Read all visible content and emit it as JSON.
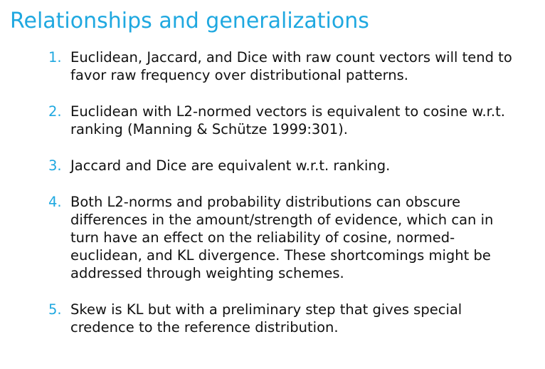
{
  "slide": {
    "title": "Relationships and generalizations",
    "points": [
      {
        "number": "1.",
        "text": "Euclidean, Jaccard, and Dice with raw count vectors will tend to favor raw frequency over distributional patterns."
      },
      {
        "number": "2.",
        "text": "Euclidean with L2-normed vectors is equivalent to cosine w.r.t. ranking (Manning & Schütze 1999:301)."
      },
      {
        "number": "3.",
        "text": "Jaccard and Dice are equivalent w.r.t. ranking."
      },
      {
        "number": "4.",
        "text": "Both L2-norms and probability distributions can obscure differences in the amount/strength of evidence, which can in turn have an effect on the reliability of cosine, normed-euclidean, and KL divergence. These shortcomings might be addressed through weighting schemes."
      },
      {
        "number": "5.",
        "text": "Skew is KL but with a preliminary step that gives special credence to the reference distribution."
      }
    ],
    "colors": {
      "accent": "#1fa8e0",
      "text": "#111111",
      "background": "#ffffff"
    }
  }
}
